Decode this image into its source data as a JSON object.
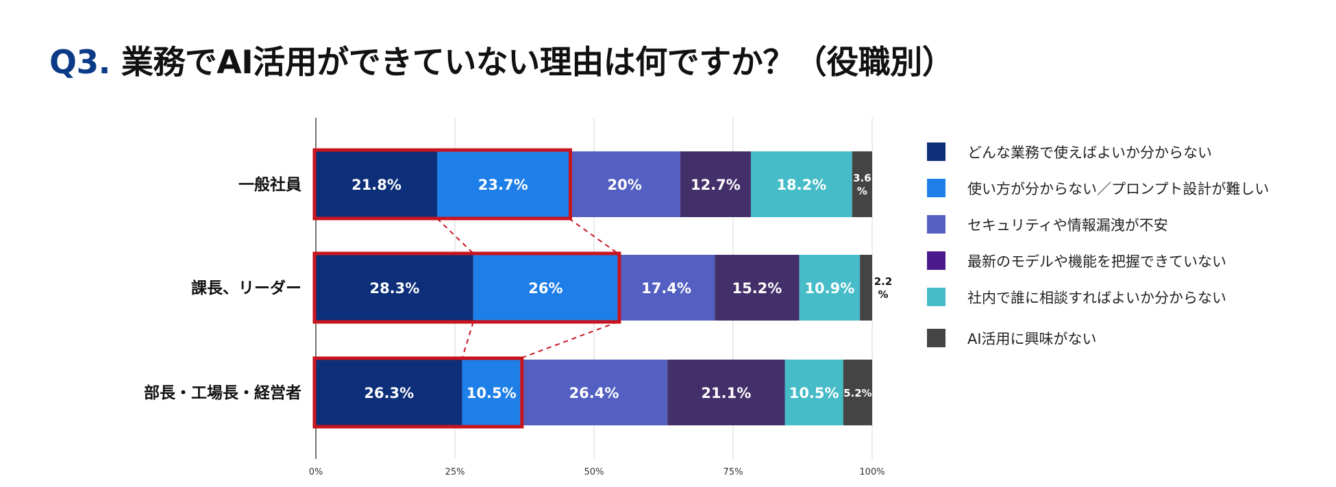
{
  "title": {
    "prefix": "Q3.",
    "text": "業務でAI活用ができていない理由は何ですか？（役職別）"
  },
  "chart_data": {
    "type": "bar",
    "orientation": "horizontal",
    "stacked": true,
    "percent": true,
    "title": "Q3. 業務でAI活用ができていない理由は何ですか？（役職別）",
    "categories": [
      "一般社員",
      "課長、リーダー",
      "部長・工場長・経営者"
    ],
    "series": [
      {
        "name": "どんな業務で使えばよいか分からない",
        "color": "#0d2f7a",
        "values": [
          21.8,
          28.3,
          26.3
        ],
        "labels": [
          "21.8%",
          "28.3%",
          "26.3%"
        ]
      },
      {
        "name": "使い方が分からない／プロンプト設計が難しい",
        "color": "#1f7fe8",
        "values": [
          23.7,
          26,
          10.5
        ],
        "labels": [
          "23.7%",
          "26%",
          "10.5%"
        ]
      },
      {
        "name": "セキュリティや情報漏洩が不安",
        "color": "#5360c2",
        "values": [
          20,
          17.4,
          26.4
        ],
        "labels": [
          "20%",
          "17.4%",
          "26.4%"
        ]
      },
      {
        "name": "最新のモデルや機能を把握できていない",
        "color": "#43306a",
        "legend_color": "#4a1a8c",
        "values": [
          12.7,
          15.2,
          21.1
        ],
        "labels": [
          "12.7%",
          "15.2%",
          "21.1%"
        ]
      },
      {
        "name": "社内で誰に相談すればよいか分からない",
        "color": "#45bcc7",
        "values": [
          18.2,
          10.9,
          10.5
        ],
        "labels": [
          "18.2%",
          "10.9%",
          "10.5%"
        ]
      },
      {
        "name": "AI活用に興味がない",
        "color": "#444444",
        "values": [
          3.6,
          2.2,
          5.2
        ],
        "labels": [
          "3.6\n%",
          "2.2\n%",
          "5.2%"
        ]
      }
    ],
    "xlim": [
      0,
      100
    ],
    "xticks": [
      "0%",
      "25%",
      "50%",
      "75%",
      "100%"
    ],
    "grid": true,
    "legend": "right",
    "highlight": {
      "series_indices": [
        0,
        1
      ],
      "color": "#c8141e",
      "connectors": "dashed"
    }
  }
}
